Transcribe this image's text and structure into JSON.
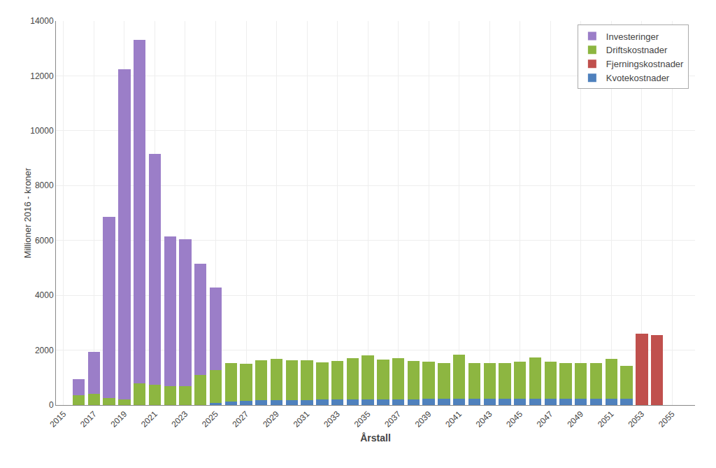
{
  "chart_data": {
    "type": "bar",
    "stacked": true,
    "x": [
      2016,
      2017,
      2018,
      2019,
      2020,
      2021,
      2022,
      2023,
      2024,
      2025,
      2026,
      2027,
      2028,
      2029,
      2030,
      2031,
      2032,
      2033,
      2034,
      2035,
      2036,
      2037,
      2038,
      2039,
      2040,
      2041,
      2042,
      2043,
      2044,
      2045,
      2046,
      2047,
      2048,
      2049,
      2050,
      2051,
      2052,
      2053,
      2054,
      2055
    ],
    "series": [
      {
        "name": "Investeringer",
        "color": "#9b7ec8",
        "values": [
          600,
          1550,
          6600,
          12050,
          12500,
          8400,
          5450,
          5350,
          4050,
          3000,
          0,
          0,
          0,
          0,
          0,
          0,
          0,
          0,
          0,
          0,
          0,
          0,
          0,
          0,
          0,
          0,
          0,
          0,
          0,
          0,
          0,
          0,
          0,
          0,
          0,
          0,
          0,
          0,
          0,
          0
        ]
      },
      {
        "name": "Driftskostnader",
        "color": "#8db641",
        "values": [
          350,
          400,
          250,
          200,
          800,
          750,
          700,
          700,
          1100,
          1200,
          1400,
          1350,
          1450,
          1500,
          1450,
          1450,
          1350,
          1400,
          1500,
          1600,
          1450,
          1500,
          1400,
          1350,
          1300,
          1600,
          1300,
          1300,
          1300,
          1350,
          1500,
          1350,
          1300,
          1300,
          1300,
          1450,
          1200,
          0,
          0,
          0
        ]
      },
      {
        "name": "Fjerningskostnader",
        "color": "#c0504d",
        "values": [
          0,
          0,
          0,
          0,
          0,
          0,
          0,
          0,
          0,
          0,
          0,
          0,
          0,
          0,
          0,
          0,
          0,
          0,
          0,
          0,
          0,
          0,
          0,
          0,
          0,
          0,
          0,
          0,
          0,
          0,
          0,
          0,
          0,
          0,
          0,
          0,
          0,
          2600,
          2550,
          0
        ]
      },
      {
        "name": "Kvotekostnader",
        "color": "#4f81bd",
        "values": [
          0,
          0,
          0,
          0,
          0,
          0,
          0,
          0,
          0,
          80,
          130,
          150,
          170,
          180,
          190,
          190,
          195,
          195,
          200,
          200,
          210,
          210,
          215,
          220,
          225,
          230,
          225,
          225,
          225,
          230,
          235,
          235,
          230,
          230,
          230,
          225,
          220,
          0,
          0,
          0
        ]
      }
    ],
    "x_label": "Årstall",
    "y_label": "Millioner 2016 - kroner",
    "xlim": [
      2014.5,
      2056.5
    ],
    "xticks": [
      2015,
      2017,
      2019,
      2021,
      2023,
      2025,
      2027,
      2029,
      2031,
      2033,
      2035,
      2037,
      2039,
      2041,
      2043,
      2045,
      2047,
      2049,
      2051,
      2053,
      2055
    ],
    "ylim": [
      0,
      14000
    ],
    "yticks": [
      0,
      2000,
      4000,
      6000,
      8000,
      10000,
      12000,
      14000
    ],
    "grid": true,
    "legend": "upper right"
  }
}
